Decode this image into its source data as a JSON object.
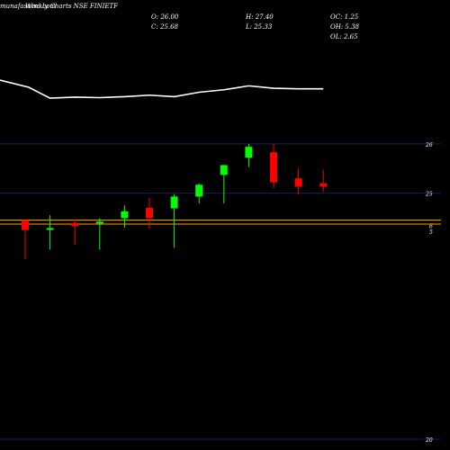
{
  "watermark": "munafasutra.com",
  "chart_title": "Weekly Charts NSE FINIETF",
  "ohlc_info": {
    "open": "O: 26.00",
    "close": "C: 25.68",
    "high": "H: 27.40",
    "low": "L: 25.33",
    "oc": "OC: 1.25",
    "oh": "OH: 5.38",
    "ol": "OL: 2.65"
  },
  "colors": {
    "background": "#000000",
    "up": "#00ff00",
    "down": "#ff0000",
    "line": "#ffffff",
    "gridline": "#1a1a66",
    "support": "#ffa500"
  },
  "chart_data": {
    "type": "candlestick",
    "title": "Weekly Charts NSE FINIETF",
    "ylim": [
      20,
      27.9
    ],
    "y_ticks": [
      {
        "value": 26,
        "label": "26"
      },
      {
        "value": 25,
        "label": "25"
      },
      {
        "value": 20,
        "label": "20"
      }
    ],
    "horizontal_lines": [
      {
        "value": 24.45,
        "label": "6"
      },
      {
        "value": 24.37,
        "label": "5"
      }
    ],
    "candles": [
      {
        "open": 24.45,
        "high": 24.45,
        "low": 23.65,
        "close": 24.25
      },
      {
        "open": 24.27,
        "high": 24.55,
        "low": 23.85,
        "close": 24.29
      },
      {
        "open": 24.39,
        "high": 24.47,
        "low": 23.95,
        "close": 24.33
      },
      {
        "open": 24.42,
        "high": 24.49,
        "low": 23.85,
        "close": 24.42
      },
      {
        "open": 24.49,
        "high": 24.75,
        "low": 24.3,
        "close": 24.63
      },
      {
        "open": 24.7,
        "high": 24.9,
        "low": 24.27,
        "close": 24.49
      },
      {
        "open": 24.69,
        "high": 24.98,
        "low": 23.89,
        "close": 24.93
      },
      {
        "open": 24.93,
        "high": 25.2,
        "low": 24.79,
        "close": 25.17
      },
      {
        "open": 25.37,
        "high": 25.57,
        "low": 24.79,
        "close": 25.57
      },
      {
        "open": 25.72,
        "high": 26.0,
        "low": 25.53,
        "close": 25.94
      },
      {
        "open": 25.83,
        "high": 26.0,
        "low": 25.1,
        "close": 25.22
      },
      {
        "open": 25.3,
        "high": 25.5,
        "low": 24.98,
        "close": 25.13
      },
      {
        "open": 25.2,
        "high": 25.47,
        "low": 25.03,
        "close": 25.13
      }
    ],
    "line_series": [
      27.15,
      26.93,
      26.95,
      26.94,
      26.96,
      26.99,
      26.96,
      27.05,
      27.1,
      27.18,
      27.13,
      27.12,
      27.12
    ]
  }
}
